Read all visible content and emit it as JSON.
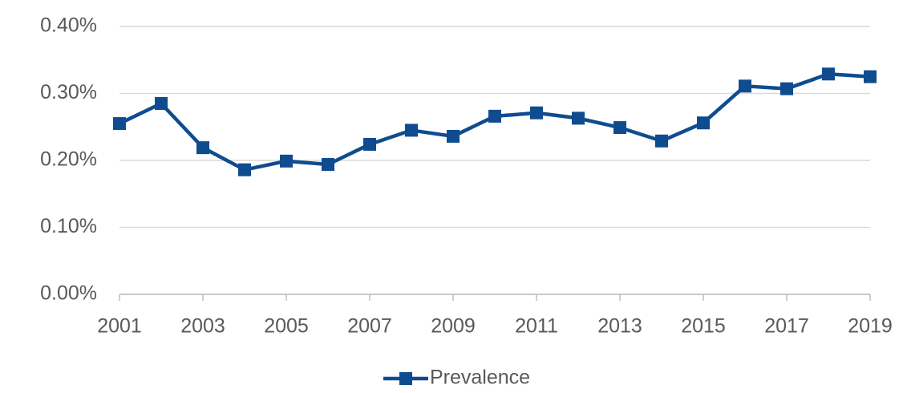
{
  "chart_data": {
    "type": "line",
    "x": [
      2001,
      2002,
      2003,
      2004,
      2005,
      2006,
      2007,
      2008,
      2009,
      2010,
      2011,
      2012,
      2013,
      2014,
      2015,
      2016,
      2017,
      2018,
      2019
    ],
    "series": [
      {
        "name": "Prevalence",
        "color": "#0f4c8f",
        "values": [
          0.255,
          0.285,
          0.219,
          0.186,
          0.199,
          0.194,
          0.224,
          0.245,
          0.236,
          0.266,
          0.271,
          0.263,
          0.249,
          0.229,
          0.256,
          0.311,
          0.307,
          0.329,
          0.325
        ]
      }
    ],
    "xlim": [
      2001,
      2019
    ],
    "xticks": [
      2001,
      2003,
      2005,
      2007,
      2009,
      2011,
      2013,
      2015,
      2017,
      2019
    ],
    "ylim": [
      0,
      0.4
    ],
    "yticks": [
      {
        "value": 0,
        "label": "0.00%"
      },
      {
        "value": 0.1,
        "label": "0.10%"
      },
      {
        "value": 0.2,
        "label": "0.20%"
      },
      {
        "value": 0.3,
        "label": "0.30%"
      },
      {
        "value": 0.4,
        "label": "0.40%"
      }
    ],
    "grid": true,
    "legend": "bottom"
  }
}
